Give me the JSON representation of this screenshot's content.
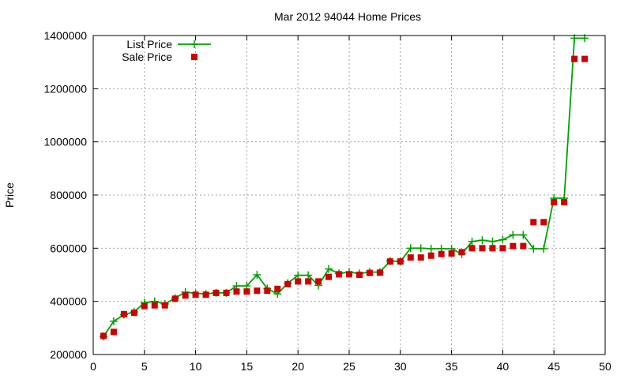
{
  "chart_data": {
    "type": "line",
    "title": "Mar 2012 94044 Home Prices",
    "xlabel": "",
    "ylabel": "Price",
    "xlim": [
      0,
      50
    ],
    "ylim": [
      200000,
      1400000
    ],
    "x_ticks": [
      0,
      5,
      10,
      15,
      20,
      25,
      30,
      35,
      40,
      45,
      50
    ],
    "y_ticks": [
      200000,
      400000,
      600000,
      800000,
      1000000,
      1200000,
      1400000
    ],
    "grid": true,
    "legend_position": "top-left",
    "series": [
      {
        "name": "List Price",
        "style": "line-with-plus-markers",
        "color": "#00a000",
        "x": [
          1,
          2,
          3,
          4,
          5,
          6,
          7,
          8,
          9,
          10,
          11,
          12,
          13,
          14,
          15,
          16,
          17,
          18,
          19,
          20,
          21,
          22,
          23,
          24,
          25,
          26,
          27,
          28,
          29,
          30,
          31,
          32,
          33,
          34,
          35,
          36,
          37,
          38,
          39,
          40,
          41,
          42,
          43,
          44,
          45,
          46,
          47,
          48
        ],
        "y": [
          268000,
          325000,
          350000,
          360000,
          395000,
          400000,
          390000,
          412000,
          435000,
          430000,
          428000,
          432000,
          432000,
          458000,
          458000,
          500000,
          448000,
          428000,
          468000,
          498000,
          498000,
          460000,
          522000,
          505000,
          510000,
          505000,
          510000,
          510000,
          552000,
          550000,
          600000,
          600000,
          598000,
          598000,
          598000,
          578000,
          625000,
          630000,
          625000,
          632000,
          650000,
          650000,
          598000,
          598000,
          788000,
          788000,
          1390000,
          1390000
        ]
      },
      {
        "name": "Sale Price",
        "style": "square-markers",
        "color": "#cc0000",
        "x": [
          1,
          2,
          3,
          4,
          5,
          6,
          7,
          8,
          9,
          10,
          11,
          12,
          13,
          14,
          15,
          16,
          17,
          18,
          19,
          20,
          21,
          22,
          23,
          24,
          25,
          26,
          27,
          28,
          29,
          30,
          31,
          32,
          33,
          34,
          35,
          36,
          37,
          38,
          39,
          40,
          41,
          42,
          43,
          44,
          45,
          46,
          47,
          48
        ],
        "y": [
          270000,
          285000,
          352000,
          357000,
          382000,
          385000,
          385000,
          410000,
          422000,
          425000,
          425000,
          432000,
          432000,
          437000,
          437000,
          440000,
          440000,
          447000,
          465000,
          475000,
          475000,
          475000,
          492000,
          502000,
          502000,
          500000,
          507000,
          508000,
          550000,
          550000,
          565000,
          565000,
          572000,
          578000,
          580000,
          585000,
          600000,
          600000,
          600000,
          600000,
          608000,
          608000,
          698000,
          698000,
          773000,
          773000,
          1312000,
          1312000
        ]
      }
    ]
  }
}
